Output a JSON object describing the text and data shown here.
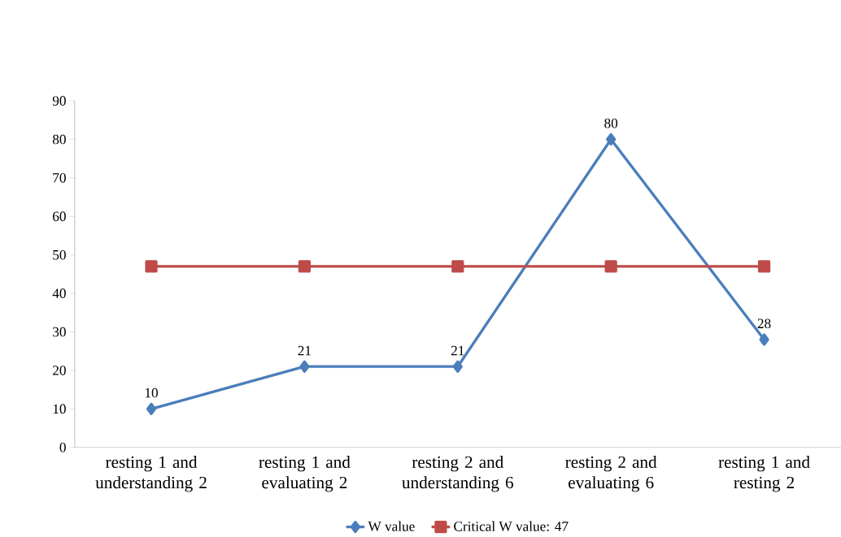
{
  "chart_data": {
    "type": "line",
    "categories": [
      "resting 1 and understanding 2",
      "resting 1 and evaluating 2",
      "resting 2 and understanding 6",
      "resting 2 and evaluating 6",
      "resting 1 and resting 2"
    ],
    "series": [
      {
        "name": "W value",
        "color": "#4a7ebb",
        "marker": "diamond",
        "values": [
          10,
          21,
          21,
          80,
          28
        ],
        "value_labels": [
          "10",
          "21",
          "21",
          "80",
          "28"
        ]
      },
      {
        "name": "Critical W value: 47",
        "color": "#be4b48",
        "marker": "square",
        "values": [
          47,
          47,
          47,
          47,
          47
        ]
      }
    ],
    "ylim": [
      0,
      90
    ],
    "yticks": [
      0,
      10,
      20,
      30,
      40,
      50,
      60,
      70,
      80,
      90
    ],
    "grid": false,
    "legend": "bottom"
  }
}
